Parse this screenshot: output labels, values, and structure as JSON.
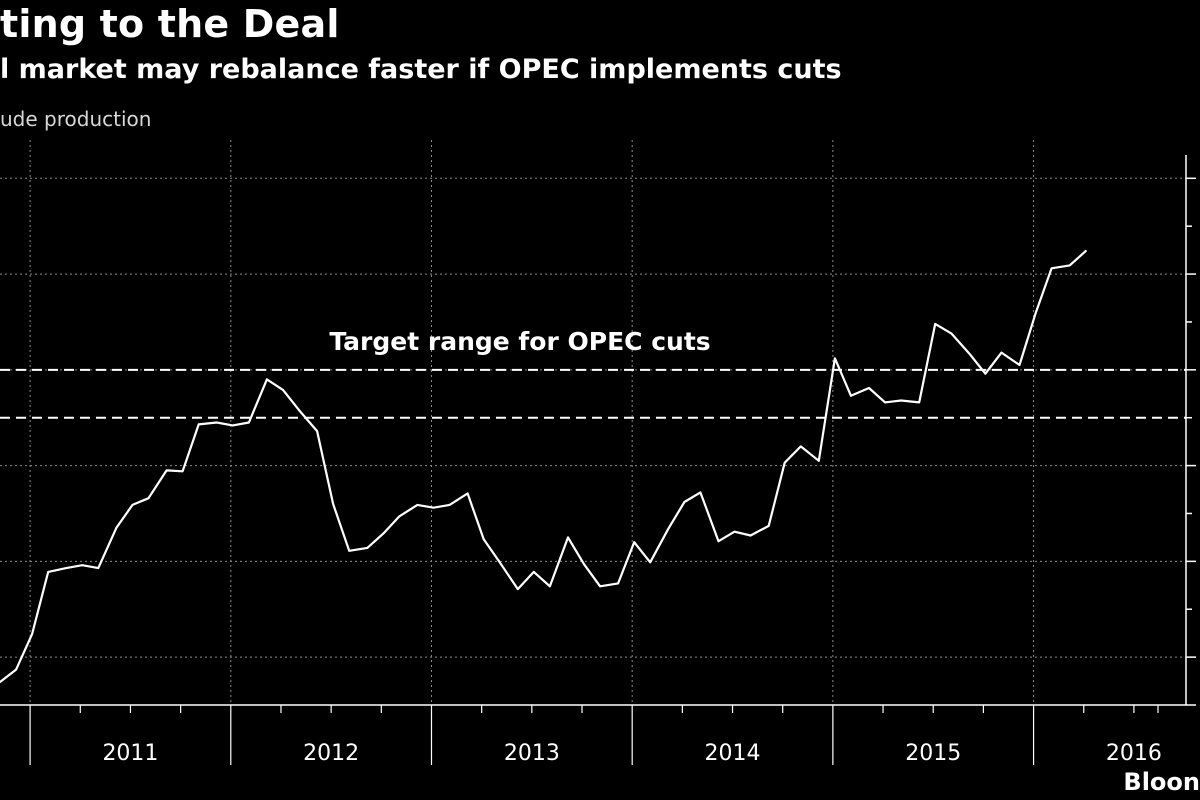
{
  "header": {
    "title": "ting to the Deal",
    "subtitle": "l market may rebalance faster if OPEC implements cuts",
    "unit_label": "ude production"
  },
  "footer": {
    "source": "Bloon"
  },
  "chart_data": {
    "type": "line",
    "title": "ting to the Deal",
    "subtitle": "l market may rebalance faster if OPEC implements cuts",
    "ylabel": "ude production",
    "grid": true,
    "x_range": [
      2010.85,
      2016.63
    ],
    "ylim": [
      29.5,
      35.4
    ],
    "y_tick_values": [
      30,
      31,
      32,
      33,
      34,
      35
    ],
    "x_tick_labels": [
      {
        "label": "2011",
        "value": 2011.0
      },
      {
        "label": "2012",
        "value": 2012.0
      },
      {
        "label": "2013",
        "value": 2013.0
      },
      {
        "label": "2014",
        "value": 2014.0
      },
      {
        "label": "2015",
        "value": 2015.0
      },
      {
        "label": "2016",
        "value": 2016.0
      }
    ],
    "target_range": {
      "label": "Target range for OPEC cuts",
      "low": 32.5,
      "high": 33.0
    },
    "series": [
      {
        "color": "#ffffff",
        "points": [
          [
            2010.85,
            29.74
          ],
          [
            2010.93,
            29.87
          ],
          [
            2011.01,
            30.24
          ],
          [
            2011.09,
            30.89
          ],
          [
            2011.18,
            30.93
          ],
          [
            2011.26,
            30.96
          ],
          [
            2011.34,
            30.93
          ],
          [
            2011.43,
            31.35
          ],
          [
            2011.51,
            31.59
          ],
          [
            2011.59,
            31.66
          ],
          [
            2011.68,
            31.95
          ],
          [
            2011.76,
            31.94
          ],
          [
            2011.84,
            32.43
          ],
          [
            2011.93,
            32.45
          ],
          [
            2012.01,
            32.42
          ],
          [
            2012.09,
            32.45
          ],
          [
            2012.18,
            32.9
          ],
          [
            2012.26,
            32.79
          ],
          [
            2012.34,
            32.58
          ],
          [
            2012.43,
            32.36
          ],
          [
            2012.51,
            31.6
          ],
          [
            2012.59,
            31.11
          ],
          [
            2012.68,
            31.14
          ],
          [
            2012.76,
            31.29
          ],
          [
            2012.84,
            31.47
          ],
          [
            2012.93,
            31.59
          ],
          [
            2013.01,
            31.56
          ],
          [
            2013.09,
            31.59
          ],
          [
            2013.18,
            31.71
          ],
          [
            2013.26,
            31.23
          ],
          [
            2013.34,
            30.99
          ],
          [
            2013.43,
            30.71
          ],
          [
            2013.51,
            30.89
          ],
          [
            2013.59,
            30.74
          ],
          [
            2013.68,
            31.25
          ],
          [
            2013.76,
            30.97
          ],
          [
            2013.84,
            30.74
          ],
          [
            2013.93,
            30.77
          ],
          [
            2014.01,
            31.2
          ],
          [
            2014.09,
            30.99
          ],
          [
            2014.18,
            31.34
          ],
          [
            2014.26,
            31.62
          ],
          [
            2014.34,
            31.72
          ],
          [
            2014.43,
            31.21
          ],
          [
            2014.51,
            31.31
          ],
          [
            2014.59,
            31.27
          ],
          [
            2014.68,
            31.37
          ],
          [
            2014.76,
            32.03
          ],
          [
            2014.84,
            32.2
          ],
          [
            2014.93,
            32.05
          ],
          [
            2015.01,
            33.12
          ],
          [
            2015.09,
            32.73
          ],
          [
            2015.18,
            32.81
          ],
          [
            2015.26,
            32.66
          ],
          [
            2015.34,
            32.68
          ],
          [
            2015.43,
            32.66
          ],
          [
            2015.51,
            33.48
          ],
          [
            2015.59,
            33.38
          ],
          [
            2015.68,
            33.17
          ],
          [
            2015.76,
            32.96
          ],
          [
            2015.84,
            33.18
          ],
          [
            2015.93,
            33.05
          ],
          [
            2016.01,
            33.59
          ],
          [
            2016.09,
            34.06
          ],
          [
            2016.18,
            34.09
          ],
          [
            2016.26,
            34.24
          ]
        ]
      }
    ]
  }
}
